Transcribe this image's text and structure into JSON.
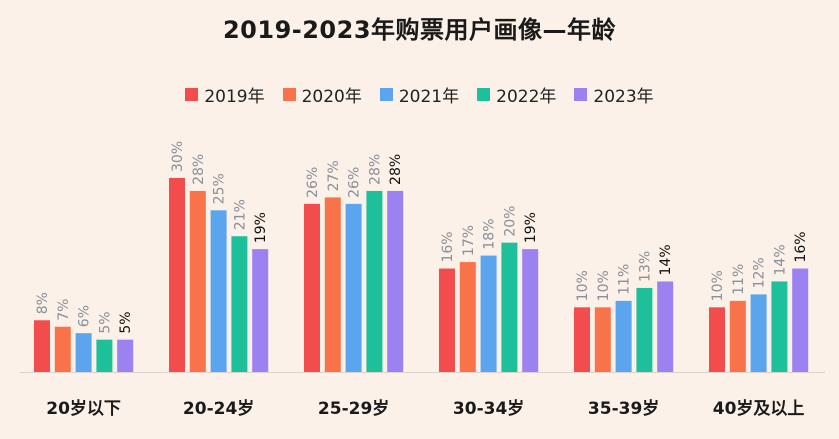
{
  "chart_data": {
    "type": "bar",
    "title": "2019-2023年购票用户画像—年龄",
    "categories": [
      "20岁以下",
      "20-24岁",
      "25-29岁",
      "30-34岁",
      "35-39岁",
      "40岁及以上"
    ],
    "series": [
      {
        "name": "2019年",
        "color": "#f24c4c",
        "values": [
          8,
          30,
          26,
          16,
          10,
          10
        ]
      },
      {
        "name": "2020年",
        "color": "#f9734a",
        "values": [
          7,
          28,
          27,
          17,
          10,
          11
        ]
      },
      {
        "name": "2021年",
        "color": "#5aa5ee",
        "values": [
          6,
          25,
          26,
          18,
          11,
          12
        ]
      },
      {
        "name": "2022年",
        "color": "#1dc09a",
        "values": [
          5,
          21,
          28,
          20,
          13,
          14
        ]
      },
      {
        "name": "2023年",
        "color": "#9b82f0",
        "values": [
          5,
          19,
          28,
          19,
          14,
          16
        ]
      }
    ],
    "value_suffix": "%",
    "ylim": [
      0,
      30
    ],
    "grid": false,
    "legend_position": "top-center"
  }
}
